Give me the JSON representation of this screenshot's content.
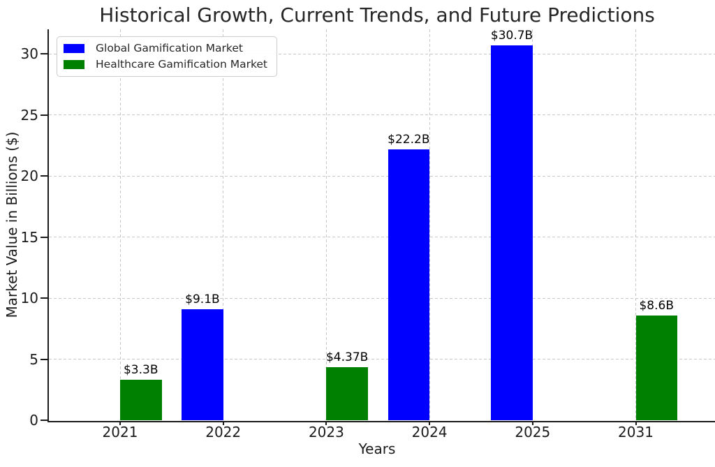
{
  "figure": {
    "background": "#ffffff",
    "text_color": "#1a1a1a",
    "grid_color": "#c8c8c8"
  },
  "chart_data": {
    "type": "bar",
    "title": "Historical Growth, Current Trends, and Future Predictions",
    "xlabel": "Years",
    "ylabel": "Market Value in Billions ($)",
    "categories": [
      "2021",
      "2022",
      "2023",
      "2024",
      "2025",
      "2031"
    ],
    "series": [
      {
        "name": "Global Gamification Market",
        "color": "#0000ff",
        "values": [
          null,
          9.1,
          null,
          22.2,
          30.7,
          null
        ],
        "bar_labels": [
          null,
          "$9.1B",
          null,
          "$22.2B",
          "$30.7B",
          null
        ]
      },
      {
        "name": "Healthcare Gamification Market",
        "color": "#008000",
        "values": [
          3.3,
          null,
          4.37,
          null,
          null,
          8.6
        ],
        "bar_labels": [
          "$3.3B",
          null,
          "$4.37B",
          null,
          null,
          "$8.6B"
        ]
      }
    ],
    "yticks": [
      0,
      5,
      10,
      15,
      20,
      25,
      30
    ],
    "ylim": [
      0,
      32
    ],
    "grid": true,
    "grid_style": "dashed",
    "legend_position": "upper left"
  }
}
